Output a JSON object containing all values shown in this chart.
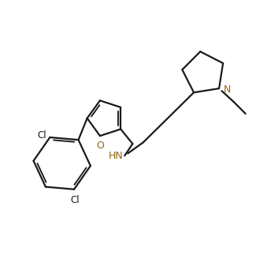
{
  "background_color": "#ffffff",
  "line_color": "#1a1a1a",
  "color_N": "#8B6914",
  "color_O": "#8B6914",
  "color_Cl": "#1a1a1a",
  "color_HN": "#8B6914",
  "line_width": 1.6,
  "fig_width": 3.39,
  "fig_height": 3.23,
  "dpi": 100,
  "xlim": [
    0,
    10
  ],
  "ylim": [
    0,
    9.5
  ]
}
